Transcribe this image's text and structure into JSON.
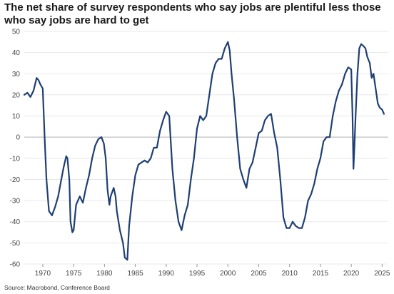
{
  "title": "The net share of survey respondents who say jobs are plentiful less those who say jobs are hard to get",
  "source": "Source: Macrobond, Conference Board",
  "chart_data": {
    "type": "line",
    "title": "The net share of survey respondents who say jobs are plentiful less those who say jobs are hard to get",
    "xlabel": "",
    "ylabel": "",
    "xlim": [
      1967,
      2026
    ],
    "ylim": [
      -60,
      50
    ],
    "grid": true,
    "line_color": "#1f3f73",
    "x_ticks": [
      1970,
      1975,
      1980,
      1985,
      1990,
      1995,
      2000,
      2005,
      2010,
      2015,
      2020,
      2025
    ],
    "y_ticks": [
      50,
      40,
      30,
      20,
      10,
      0,
      -10,
      -20,
      -30,
      -40,
      -50,
      -60
    ],
    "series": [
      {
        "x": [
          1967.0,
          1967.5,
          1968.0,
          1968.5,
          1969.0,
          1969.3,
          1969.6,
          1970.0,
          1970.3,
          1970.6,
          1971.0,
          1971.5,
          1972.0,
          1972.5,
          1973.0,
          1973.4,
          1973.8,
          1974.0,
          1974.3,
          1974.5,
          1974.8,
          1975.0,
          1975.4,
          1976.0,
          1976.5,
          1977.0,
          1977.5,
          1978.0,
          1978.5,
          1979.0,
          1979.5,
          1979.9,
          1980.2,
          1980.5,
          1980.8,
          1981.0,
          1981.5,
          1981.8,
          1982.0,
          1982.5,
          1983.0,
          1983.3,
          1983.7,
          1984.0,
          1984.5,
          1985.0,
          1985.5,
          1986.0,
          1986.5,
          1987.0,
          1987.5,
          1988.0,
          1988.5,
          1989.0,
          1989.5,
          1990.0,
          1990.5,
          1991.0,
          1991.5,
          1992.0,
          1992.5,
          1993.0,
          1993.5,
          1994.0,
          1994.5,
          1995.0,
          1995.5,
          1996.0,
          1996.5,
          1997.0,
          1997.5,
          1998.0,
          1998.5,
          1999.0,
          1999.5,
          2000.0,
          2000.3,
          2000.6,
          2001.0,
          2001.5,
          2002.0,
          2002.5,
          2003.0,
          2003.5,
          2004.0,
          2004.5,
          2005.0,
          2005.5,
          2006.0,
          2006.5,
          2007.0,
          2007.5,
          2008.0,
          2008.5,
          2009.0,
          2009.5,
          2010.0,
          2010.5,
          2011.0,
          2011.5,
          2012.0,
          2012.5,
          2013.0,
          2013.5,
          2014.0,
          2014.5,
          2015.0,
          2015.5,
          2016.0,
          2016.5,
          2017.0,
          2017.5,
          2018.0,
          2018.5,
          2019.0,
          2019.5,
          2020.0,
          2020.2,
          2020.35,
          2020.5,
          2020.7,
          2021.0,
          2021.3,
          2021.6,
          2022.0,
          2022.3,
          2022.6,
          2023.0,
          2023.3,
          2023.6,
          2024.0,
          2024.3,
          2024.6,
          2025.0,
          2025.3
        ],
        "y": [
          20,
          21,
          19,
          22,
          28,
          27,
          25,
          23,
          0,
          -20,
          -35,
          -37,
          -33,
          -28,
          -20,
          -14,
          -9,
          -10,
          -20,
          -40,
          -45,
          -44,
          -32,
          -28,
          -31,
          -24,
          -18,
          -10,
          -4,
          -1,
          0,
          -3,
          -10,
          -25,
          -32,
          -28,
          -24,
          -28,
          -35,
          -44,
          -50,
          -57,
          -58,
          -42,
          -28,
          -18,
          -13,
          -12,
          -11,
          -12,
          -10,
          -5,
          -5,
          3,
          8,
          12,
          10,
          -15,
          -30,
          -40,
          -44,
          -37,
          -32,
          -20,
          -10,
          4,
          10,
          8,
          10,
          20,
          30,
          35,
          37,
          37,
          42,
          45,
          41,
          30,
          18,
          0,
          -15,
          -20,
          -24,
          -15,
          -12,
          -5,
          2,
          3,
          8,
          10,
          11,
          2,
          -5,
          -20,
          -38,
          -43,
          -43,
          -40,
          -42,
          -43,
          -43,
          -38,
          -30,
          -27,
          -22,
          -15,
          -10,
          -2,
          0,
          0,
          10,
          17,
          22,
          25,
          30,
          33,
          32,
          10,
          -15,
          -5,
          10,
          30,
          42,
          44,
          43,
          42,
          38,
          35,
          28,
          30,
          22,
          16,
          14,
          13,
          11
        ]
      }
    ]
  }
}
